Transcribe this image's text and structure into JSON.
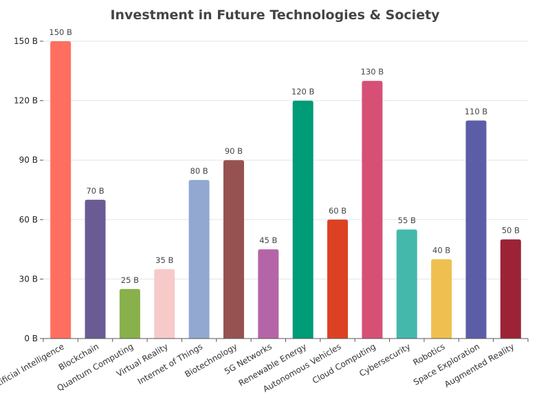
{
  "chart_data": {
    "type": "bar",
    "title": "Investment in Future Technologies & Society",
    "xlabel": "",
    "ylabel": "",
    "value_suffix": " B",
    "ylim": [
      0,
      150
    ],
    "yticks": [
      0,
      30,
      60,
      90,
      120,
      150
    ],
    "grid": true,
    "categories": [
      "Artificial Intelligence",
      "Blockchain",
      "Quantum Computing",
      "Virtual Reality",
      "Internet of Things",
      "Biotechnology",
      "5G Networks",
      "Renewable Energy",
      "Autonomous Vehicles",
      "Cloud Computing",
      "Cybersecurity",
      "Robotics",
      "Space Exploration",
      "Augmented Reality"
    ],
    "values": [
      150,
      70,
      25,
      35,
      80,
      90,
      45,
      120,
      60,
      130,
      55,
      40,
      110,
      50
    ],
    "colors": [
      "#ff6f61",
      "#6b5b95",
      "#88b04b",
      "#f7cac9",
      "#92a8d1",
      "#955251",
      "#b565a7",
      "#009b77",
      "#dd4124",
      "#d65076",
      "#45b8ac",
      "#efc050",
      "#5b5ea6",
      "#9b2335"
    ]
  }
}
